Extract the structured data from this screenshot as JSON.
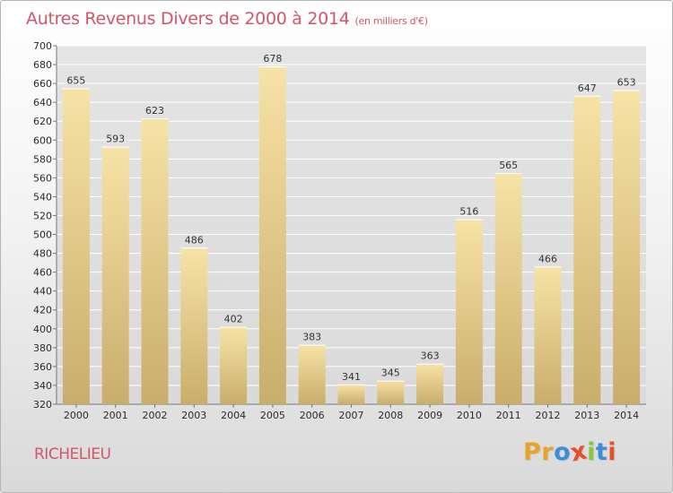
{
  "header": {
    "title": "Autres Revenus Divers de 2000 à 2014",
    "unit": "(en milliers d'€)"
  },
  "footer": {
    "place": "RICHELIEU",
    "logo": "Proxiti",
    "logo_colors": [
      "#e8a428",
      "#e8a428",
      "#3a8fd6",
      "#e84e2c",
      "#8cc63f",
      "#3a8fd6",
      "#e84e2c"
    ]
  },
  "colors": {
    "title": "#d2556a",
    "bar_light": "#f7e3a6",
    "bar_dark": "#c9ad6c",
    "grid": "#ffffff",
    "axis": "#777777"
  },
  "chart_data": {
    "type": "bar",
    "title": "Autres Revenus Divers de 2000 à 2014",
    "subtitle": "(en milliers d'€)",
    "xlabel": "",
    "ylabel": "",
    "categories": [
      "2000",
      "2001",
      "2002",
      "2003",
      "2004",
      "2005",
      "2006",
      "2007",
      "2008",
      "2009",
      "2010",
      "2011",
      "2012",
      "2013",
      "2014"
    ],
    "values": [
      655,
      593,
      623,
      486,
      402,
      678,
      383,
      341,
      345,
      363,
      516,
      565,
      466,
      647,
      653
    ],
    "ylim": [
      320,
      700
    ],
    "ytick_step": 20,
    "grid": true,
    "legend": "none"
  }
}
